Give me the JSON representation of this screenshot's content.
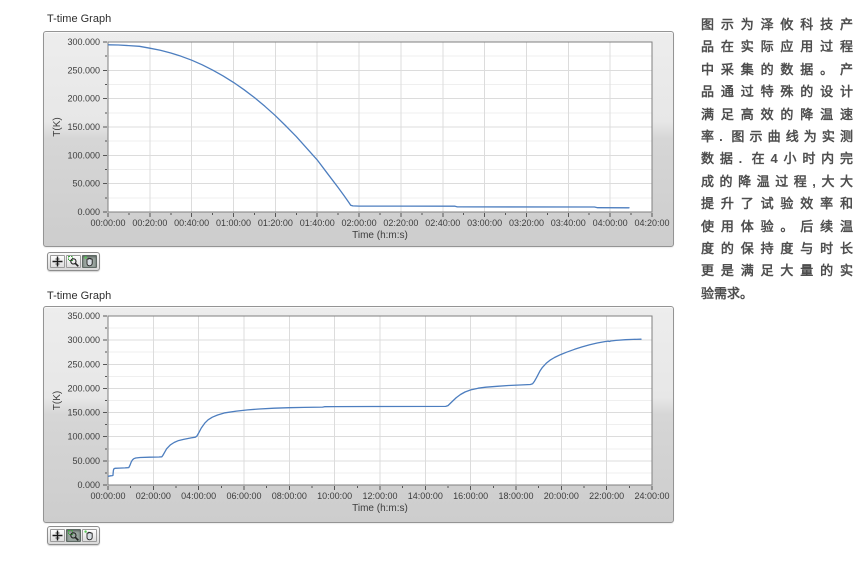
{
  "colors": {
    "plot_line": "#4d7ebf",
    "plot_background": "#ffffff",
    "plot_border": "#7f7f7f",
    "grid_major": "#dcdcdc",
    "grid_minor": "#efefef",
    "tick_text": "#3d3d3d",
    "widget_background_top": "#ededed",
    "widget_background_bottom": "#cdcdcd"
  },
  "chart_data": [
    {
      "type": "line",
      "title": "T-time Graph",
      "xlabel": "Time (h:m:s)",
      "ylabel": "T(K)",
      "xlim": [
        0,
        15600
      ],
      "ylim": [
        0,
        300
      ],
      "x_minor_step": 600,
      "y_minor_step": 25,
      "grid": true,
      "x_ticks": [
        {
          "v": 0,
          "label": "00:00:00"
        },
        {
          "v": 1200,
          "label": "00:20:00"
        },
        {
          "v": 2400,
          "label": "00:40:00"
        },
        {
          "v": 3600,
          "label": "01:00:00"
        },
        {
          "v": 4800,
          "label": "01:20:00"
        },
        {
          "v": 6000,
          "label": "01:40:00"
        },
        {
          "v": 7200,
          "label": "02:00:00"
        },
        {
          "v": 8400,
          "label": "02:20:00"
        },
        {
          "v": 9600,
          "label": "02:40:00"
        },
        {
          "v": 10800,
          "label": "03:00:00"
        },
        {
          "v": 12000,
          "label": "03:20:00"
        },
        {
          "v": 13200,
          "label": "03:40:00"
        },
        {
          "v": 14400,
          "label": "04:00:00"
        },
        {
          "v": 15600,
          "label": "04:20:00"
        }
      ],
      "y_ticks": [
        {
          "v": 0,
          "label": "0.000"
        },
        {
          "v": 50,
          "label": "50.000"
        },
        {
          "v": 100,
          "label": "100.000"
        },
        {
          "v": 150,
          "label": "150.000"
        },
        {
          "v": 200,
          "label": "200.000"
        },
        {
          "v": 250,
          "label": "250.000"
        },
        {
          "v": 300,
          "label": "300.000"
        }
      ],
      "line_color": "#4d7ebf",
      "series": [
        [
          0,
          295
        ],
        [
          300,
          294.7
        ],
        [
          600,
          293.7
        ],
        [
          900,
          292.4
        ],
        [
          1200,
          289.1
        ],
        [
          1500,
          285.3
        ],
        [
          1800,
          280.5
        ],
        [
          2100,
          274.7
        ],
        [
          2400,
          267.8
        ],
        [
          2700,
          259.7
        ],
        [
          3000,
          250.5
        ],
        [
          3300,
          240.2
        ],
        [
          3600,
          228.7
        ],
        [
          3900,
          215.9
        ],
        [
          4200,
          201.8
        ],
        [
          4500,
          186.5
        ],
        [
          4800,
          170
        ],
        [
          5100,
          152
        ],
        [
          5400,
          133
        ],
        [
          5700,
          112.5
        ],
        [
          6000,
          92
        ],
        [
          6300,
          67.4
        ],
        [
          6600,
          43
        ],
        [
          6780,
          28
        ],
        [
          6900,
          17.4
        ],
        [
          6960,
          12
        ],
        [
          7020,
          10.8
        ],
        [
          7200,
          10.5
        ],
        [
          8400,
          10.4
        ],
        [
          9950,
          10.3
        ],
        [
          10020,
          9
        ],
        [
          13950,
          8.8
        ],
        [
          14040,
          7.6
        ],
        [
          14940,
          7.5
        ]
      ],
      "palette": {
        "buttons": [
          "cursor-tool",
          "zoom-tool",
          "pan-tool"
        ],
        "active": "pan-tool"
      }
    },
    {
      "type": "line",
      "title": "T-time Graph",
      "xlabel": "Time (h:m:s)",
      "ylabel": "T(K)",
      "xlim": [
        0,
        86400
      ],
      "ylim": [
        0,
        350
      ],
      "x_minor_step": 3600,
      "y_minor_step": 25,
      "grid": true,
      "x_ticks": [
        {
          "v": 0,
          "label": "00:00:00"
        },
        {
          "v": 7200,
          "label": "02:00:00"
        },
        {
          "v": 14400,
          "label": "04:00:00"
        },
        {
          "v": 21600,
          "label": "06:00:00"
        },
        {
          "v": 28800,
          "label": "08:00:00"
        },
        {
          "v": 36000,
          "label": "10:00:00"
        },
        {
          "v": 43200,
          "label": "12:00:00"
        },
        {
          "v": 50400,
          "label": "14:00:00"
        },
        {
          "v": 57600,
          "label": "16:00:00"
        },
        {
          "v": 64800,
          "label": "18:00:00"
        },
        {
          "v": 72000,
          "label": "20:00:00"
        },
        {
          "v": 79200,
          "label": "22:00:00"
        },
        {
          "v": 86400,
          "label": "24:00:00"
        }
      ],
      "y_ticks": [
        {
          "v": 0,
          "label": "0.000"
        },
        {
          "v": 50,
          "label": "50.000"
        },
        {
          "v": 100,
          "label": "100.000"
        },
        {
          "v": 150,
          "label": "150.000"
        },
        {
          "v": 200,
          "label": "200.000"
        },
        {
          "v": 250,
          "label": "250.000"
        },
        {
          "v": 300,
          "label": "300.000"
        },
        {
          "v": 350,
          "label": "350.000"
        }
      ],
      "line_color": "#4d7ebf",
      "series": [
        [
          0,
          18
        ],
        [
          420,
          19
        ],
        [
          720,
          19.5
        ],
        [
          790,
          20
        ],
        [
          810,
          24
        ],
        [
          850,
          30
        ],
        [
          900,
          33
        ],
        [
          1100,
          34.5
        ],
        [
          1800,
          35
        ],
        [
          2700,
          35.5
        ],
        [
          3300,
          36
        ],
        [
          3500,
          41
        ],
        [
          3700,
          48
        ],
        [
          3900,
          52.5
        ],
        [
          4100,
          54.5
        ],
        [
          4400,
          56
        ],
        [
          5100,
          57
        ],
        [
          6600,
          57.5
        ],
        [
          8100,
          58
        ],
        [
          8550,
          58.5
        ],
        [
          8700,
          61
        ],
        [
          9000,
          68
        ],
        [
          9300,
          75
        ],
        [
          9900,
          83
        ],
        [
          10500,
          88
        ],
        [
          11100,
          91.5
        ],
        [
          12000,
          94.5
        ],
        [
          13200,
          97.5
        ],
        [
          13860,
          99
        ],
        [
          14100,
          101
        ],
        [
          14400,
          108
        ],
        [
          14820,
          118
        ],
        [
          15360,
          128
        ],
        [
          15900,
          135
        ],
        [
          16560,
          140.5
        ],
        [
          17400,
          145
        ],
        [
          18600,
          149.5
        ],
        [
          20400,
          153
        ],
        [
          22200,
          155.5
        ],
        [
          24000,
          157.5
        ],
        [
          26400,
          159
        ],
        [
          28800,
          160
        ],
        [
          31200,
          160.8
        ],
        [
          34080,
          161.4
        ],
        [
          34380,
          162.2
        ],
        [
          36000,
          162.4
        ],
        [
          42000,
          162.6
        ],
        [
          53640,
          162.8
        ],
        [
          54000,
          164.5
        ],
        [
          54660,
          173
        ],
        [
          55320,
          181
        ],
        [
          55980,
          187.5
        ],
        [
          56700,
          192.5
        ],
        [
          57600,
          197
        ],
        [
          58800,
          200.5
        ],
        [
          60000,
          202.5
        ],
        [
          61800,
          204.5
        ],
        [
          63600,
          206
        ],
        [
          65400,
          207
        ],
        [
          67080,
          208.2
        ],
        [
          67440,
          209.5
        ],
        [
          67740,
          215
        ],
        [
          68040,
          222
        ],
        [
          68340,
          229.5
        ],
        [
          68640,
          237
        ],
        [
          69000,
          243.5
        ],
        [
          69600,
          252
        ],
        [
          70200,
          258.5
        ],
        [
          70920,
          264
        ],
        [
          71880,
          270
        ],
        [
          72840,
          275
        ],
        [
          74100,
          281
        ],
        [
          75300,
          286
        ],
        [
          76500,
          290.5
        ],
        [
          77700,
          294
        ],
        [
          78900,
          297
        ],
        [
          79440,
          298
        ],
        [
          79620,
          297.2
        ],
        [
          79860,
          298.3
        ],
        [
          80700,
          299.5
        ],
        [
          82200,
          300.9
        ],
        [
          83400,
          301.6
        ],
        [
          84660,
          302
        ]
      ],
      "palette": {
        "buttons": [
          "cursor-tool",
          "zoom-tool",
          "pan-tool"
        ],
        "active": "zoom-tool"
      }
    }
  ],
  "description_panel": {
    "lines": [
      "图示为泽攸科技产",
      "品在实际应用过程",
      "中采集的数据。产",
      "品通过特殊的设计",
      "满足高效的降温速",
      "率. 图示曲线为实测",
      "数据. 在4小时内完",
      "成的降温过程,大大",
      "提升了试验效率和",
      "使用体验。后续温",
      "度的保持度与时长",
      "更是满足大量的实",
      "验需求。"
    ]
  }
}
